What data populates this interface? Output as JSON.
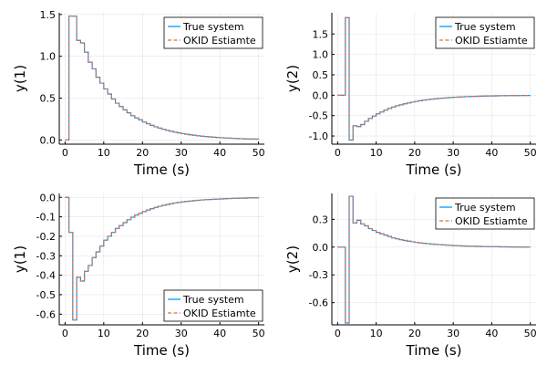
{
  "chart_data": [
    {
      "type": "line",
      "xlabel": "Time (s)",
      "ylabel": "y(1)",
      "xlim": [
        -1.5,
        51.5
      ],
      "ylim": [
        -0.05,
        1.52
      ],
      "xticks": [
        0,
        10,
        20,
        30,
        40,
        50
      ],
      "yticks": [
        0.0,
        0.5,
        1.0,
        1.5
      ],
      "ytick_labels": [
        "0.0",
        "0.5",
        "1.0",
        "1.5"
      ],
      "grid": true,
      "legend_position": "top-right",
      "series": [
        {
          "name": "True system",
          "color": "#009AFA",
          "style": "solid",
          "x": [
            0,
            1,
            2,
            3,
            4,
            5,
            6,
            7,
            8,
            9,
            10,
            11,
            12,
            13,
            14,
            15,
            16,
            17,
            18,
            19,
            20,
            21,
            22,
            23,
            24,
            25,
            26,
            27,
            28,
            29,
            30,
            31,
            32,
            33,
            34,
            35,
            36,
            37,
            38,
            39,
            40,
            41,
            42,
            43,
            44,
            45,
            46,
            47,
            48,
            49,
            50
          ],
          "y": [
            0,
            1.48,
            1.48,
            1.19,
            1.16,
            1.05,
            0.93,
            0.85,
            0.75,
            0.68,
            0.61,
            0.55,
            0.49,
            0.44,
            0.4,
            0.36,
            0.325,
            0.29,
            0.265,
            0.24,
            0.215,
            0.195,
            0.175,
            0.158,
            0.142,
            0.128,
            0.115,
            0.104,
            0.094,
            0.085,
            0.076,
            0.069,
            0.062,
            0.056,
            0.05,
            0.045,
            0.041,
            0.037,
            0.033,
            0.03,
            0.027,
            0.024,
            0.022,
            0.02,
            0.018,
            0.016,
            0.014,
            0.013,
            0.012,
            0.011,
            0.01
          ]
        },
        {
          "name": "OKID Estiamte",
          "color": "#E26F46",
          "style": "dashed",
          "x": [
            0,
            1,
            2,
            3,
            4,
            5,
            6,
            7,
            8,
            9,
            10,
            11,
            12,
            13,
            14,
            15,
            16,
            17,
            18,
            19,
            20,
            21,
            22,
            23,
            24,
            25,
            26,
            27,
            28,
            29,
            30,
            31,
            32,
            33,
            34,
            35,
            36,
            37,
            38,
            39,
            40,
            41,
            42,
            43,
            44,
            45,
            46,
            47,
            48,
            49,
            50
          ],
          "y": [
            0,
            1.48,
            1.48,
            1.19,
            1.16,
            1.05,
            0.93,
            0.85,
            0.75,
            0.68,
            0.61,
            0.55,
            0.49,
            0.44,
            0.4,
            0.36,
            0.325,
            0.29,
            0.265,
            0.24,
            0.215,
            0.195,
            0.175,
            0.158,
            0.142,
            0.128,
            0.115,
            0.104,
            0.094,
            0.085,
            0.076,
            0.069,
            0.062,
            0.056,
            0.05,
            0.045,
            0.041,
            0.037,
            0.033,
            0.03,
            0.027,
            0.024,
            0.022,
            0.02,
            0.018,
            0.016,
            0.014,
            0.013,
            0.012,
            0.011,
            0.01
          ]
        }
      ]
    },
    {
      "type": "line",
      "xlabel": "Time (s)",
      "ylabel": "y(2)",
      "xlim": [
        -1.5,
        51.5
      ],
      "ylim": [
        -1.2,
        2.02
      ],
      "xticks": [
        0,
        10,
        20,
        30,
        40,
        50
      ],
      "yticks": [
        -1.0,
        -0.5,
        0.0,
        0.5,
        1.0,
        1.5
      ],
      "ytick_labels": [
        "-1.0",
        "-0.5",
        "0.0",
        "0.5",
        "1.0",
        "1.5"
      ],
      "grid": true,
      "legend_position": "top-right",
      "series": [
        {
          "name": "True system",
          "color": "#009AFA",
          "style": "solid",
          "x": [
            0,
            1,
            2,
            3,
            4,
            5,
            6,
            7,
            8,
            9,
            10,
            11,
            12,
            13,
            14,
            15,
            16,
            17,
            18,
            19,
            20,
            21,
            22,
            23,
            24,
            25,
            26,
            27,
            28,
            29,
            30,
            31,
            32,
            33,
            34,
            35,
            36,
            37,
            38,
            39,
            40,
            41,
            42,
            43,
            44,
            45,
            46,
            47,
            48,
            49,
            50
          ],
          "y": [
            0,
            0,
            1.9,
            -1.1,
            -0.75,
            -0.77,
            -0.72,
            -0.64,
            -0.57,
            -0.51,
            -0.455,
            -0.41,
            -0.365,
            -0.325,
            -0.29,
            -0.26,
            -0.235,
            -0.21,
            -0.19,
            -0.17,
            -0.15,
            -0.135,
            -0.12,
            -0.108,
            -0.097,
            -0.087,
            -0.078,
            -0.07,
            -0.063,
            -0.056,
            -0.05,
            -0.045,
            -0.04,
            -0.036,
            -0.032,
            -0.029,
            -0.026,
            -0.023,
            -0.021,
            -0.019,
            -0.017,
            -0.015,
            -0.013,
            -0.012,
            -0.011,
            -0.01,
            -0.009,
            -0.008,
            -0.007,
            -0.006,
            -0.006
          ]
        },
        {
          "name": "OKID Estiamte",
          "color": "#E26F46",
          "style": "dashed",
          "x": [
            0,
            1,
            2,
            3,
            4,
            5,
            6,
            7,
            8,
            9,
            10,
            11,
            12,
            13,
            14,
            15,
            16,
            17,
            18,
            19,
            20,
            21,
            22,
            23,
            24,
            25,
            26,
            27,
            28,
            29,
            30,
            31,
            32,
            33,
            34,
            35,
            36,
            37,
            38,
            39,
            40,
            41,
            42,
            43,
            44,
            45,
            46,
            47,
            48,
            49,
            50
          ],
          "y": [
            0,
            0,
            1.9,
            -1.1,
            -0.75,
            -0.77,
            -0.72,
            -0.64,
            -0.57,
            -0.51,
            -0.455,
            -0.41,
            -0.365,
            -0.325,
            -0.29,
            -0.26,
            -0.235,
            -0.21,
            -0.19,
            -0.17,
            -0.15,
            -0.135,
            -0.12,
            -0.108,
            -0.097,
            -0.087,
            -0.078,
            -0.07,
            -0.063,
            -0.056,
            -0.05,
            -0.045,
            -0.04,
            -0.036,
            -0.032,
            -0.029,
            -0.026,
            -0.023,
            -0.021,
            -0.019,
            -0.017,
            -0.015,
            -0.013,
            -0.012,
            -0.011,
            -0.01,
            -0.009,
            -0.008,
            -0.007,
            -0.006,
            -0.006
          ]
        }
      ]
    },
    {
      "type": "line",
      "xlabel": "Time (s)",
      "ylabel": "y(1)",
      "xlim": [
        -1.5,
        51.5
      ],
      "ylim": [
        -0.655,
        0.02
      ],
      "xticks": [
        0,
        10,
        20,
        30,
        40,
        50
      ],
      "yticks": [
        -0.6,
        -0.5,
        -0.4,
        -0.3,
        -0.2,
        -0.1,
        0.0
      ],
      "ytick_labels": [
        "-0.6",
        "-0.5",
        "-0.4",
        "-0.3",
        "-0.2",
        "-0.1",
        "0.0"
      ],
      "grid": true,
      "legend_position": "bottom-right",
      "series": [
        {
          "name": "True system",
          "color": "#009AFA",
          "style": "solid",
          "x": [
            0,
            1,
            2,
            3,
            4,
            5,
            6,
            7,
            8,
            9,
            10,
            11,
            12,
            13,
            14,
            15,
            16,
            17,
            18,
            19,
            20,
            21,
            22,
            23,
            24,
            25,
            26,
            27,
            28,
            29,
            30,
            31,
            32,
            33,
            34,
            35,
            36,
            37,
            38,
            39,
            40,
            41,
            42,
            43,
            44,
            45,
            46,
            47,
            48,
            49,
            50
          ],
          "y": [
            0,
            -0.18,
            -0.63,
            -0.41,
            -0.43,
            -0.38,
            -0.35,
            -0.31,
            -0.28,
            -0.25,
            -0.22,
            -0.2,
            -0.18,
            -0.16,
            -0.145,
            -0.13,
            -0.115,
            -0.102,
            -0.091,
            -0.082,
            -0.073,
            -0.065,
            -0.058,
            -0.052,
            -0.046,
            -0.041,
            -0.037,
            -0.033,
            -0.029,
            -0.026,
            -0.023,
            -0.021,
            -0.019,
            -0.017,
            -0.015,
            -0.013,
            -0.012,
            -0.011,
            -0.01,
            -0.009,
            -0.008,
            -0.007,
            -0.006,
            -0.005,
            -0.005,
            -0.004,
            -0.004,
            -0.003,
            -0.003,
            -0.003,
            -0.002
          ]
        },
        {
          "name": "OKID Estiamte",
          "color": "#E26F46",
          "style": "dashed",
          "x": [
            0,
            1,
            2,
            3,
            4,
            5,
            6,
            7,
            8,
            9,
            10,
            11,
            12,
            13,
            14,
            15,
            16,
            17,
            18,
            19,
            20,
            21,
            22,
            23,
            24,
            25,
            26,
            27,
            28,
            29,
            30,
            31,
            32,
            33,
            34,
            35,
            36,
            37,
            38,
            39,
            40,
            41,
            42,
            43,
            44,
            45,
            46,
            47,
            48,
            49,
            50
          ],
          "y": [
            0,
            -0.18,
            -0.63,
            -0.41,
            -0.43,
            -0.38,
            -0.35,
            -0.31,
            -0.28,
            -0.25,
            -0.22,
            -0.2,
            -0.18,
            -0.16,
            -0.145,
            -0.13,
            -0.115,
            -0.102,
            -0.091,
            -0.082,
            -0.073,
            -0.065,
            -0.058,
            -0.052,
            -0.046,
            -0.041,
            -0.037,
            -0.033,
            -0.029,
            -0.026,
            -0.023,
            -0.021,
            -0.019,
            -0.017,
            -0.015,
            -0.013,
            -0.012,
            -0.011,
            -0.01,
            -0.009,
            -0.008,
            -0.007,
            -0.006,
            -0.005,
            -0.005,
            -0.004,
            -0.004,
            -0.003,
            -0.003,
            -0.003,
            -0.002
          ]
        }
      ]
    },
    {
      "type": "line",
      "xlabel": "Time (s)",
      "ylabel": "y(2)",
      "xlim": [
        -1.5,
        51.5
      ],
      "ylim": [
        -0.84,
        0.58
      ],
      "xticks": [
        0,
        10,
        20,
        30,
        40,
        50
      ],
      "yticks": [
        -0.6,
        -0.3,
        0.0,
        0.3
      ],
      "ytick_labels": [
        "-0.6",
        "-0.3",
        "0.0",
        "0.3"
      ],
      "grid": true,
      "legend_position": "top-right",
      "series": [
        {
          "name": "True system",
          "color": "#009AFA",
          "style": "solid",
          "x": [
            0,
            1,
            2,
            3,
            4,
            5,
            6,
            7,
            8,
            9,
            10,
            11,
            12,
            13,
            14,
            15,
            16,
            17,
            18,
            19,
            20,
            21,
            22,
            23,
            24,
            25,
            26,
            27,
            28,
            29,
            30,
            31,
            32,
            33,
            34,
            35,
            36,
            37,
            38,
            39,
            40,
            41,
            42,
            43,
            44,
            45,
            46,
            47,
            48,
            49,
            50
          ],
          "y": [
            0,
            0,
            -0.82,
            0.55,
            0.26,
            0.29,
            0.25,
            0.23,
            0.2,
            0.18,
            0.16,
            0.145,
            0.13,
            0.115,
            0.1,
            0.09,
            0.08,
            0.072,
            0.065,
            0.058,
            0.052,
            0.046,
            0.041,
            0.037,
            0.033,
            0.03,
            0.027,
            0.024,
            0.021,
            0.019,
            0.017,
            0.015,
            0.013,
            0.012,
            0.01,
            0.009,
            0.008,
            0.007,
            0.006,
            0.005,
            0.005,
            0.004,
            0.003,
            0.003,
            0.002,
            0.002,
            0.001,
            0.001,
            0.001,
            0,
            0
          ]
        },
        {
          "name": "OKID Estiamte",
          "color": "#E26F46",
          "style": "dashed",
          "x": [
            0,
            1,
            2,
            3,
            4,
            5,
            6,
            7,
            8,
            9,
            10,
            11,
            12,
            13,
            14,
            15,
            16,
            17,
            18,
            19,
            20,
            21,
            22,
            23,
            24,
            25,
            26,
            27,
            28,
            29,
            30,
            31,
            32,
            33,
            34,
            35,
            36,
            37,
            38,
            39,
            40,
            41,
            42,
            43,
            44,
            45,
            46,
            47,
            48,
            49,
            50
          ],
          "y": [
            0,
            0,
            -0.82,
            0.55,
            0.26,
            0.29,
            0.25,
            0.23,
            0.2,
            0.18,
            0.16,
            0.145,
            0.13,
            0.115,
            0.1,
            0.09,
            0.08,
            0.072,
            0.065,
            0.058,
            0.052,
            0.046,
            0.041,
            0.037,
            0.033,
            0.03,
            0.027,
            0.024,
            0.021,
            0.019,
            0.017,
            0.015,
            0.013,
            0.012,
            0.01,
            0.009,
            0.008,
            0.007,
            0.006,
            0.005,
            0.005,
            0.004,
            0.003,
            0.003,
            0.002,
            0.002,
            0.001,
            0.001,
            0.001,
            0,
            0
          ]
        }
      ]
    }
  ]
}
